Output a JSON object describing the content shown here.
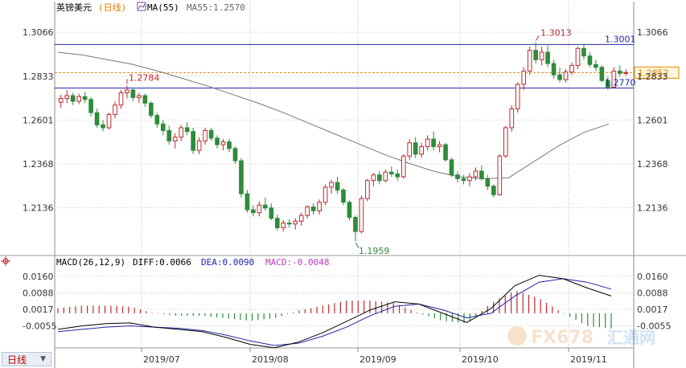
{
  "header": {
    "symbol": "英镑美元",
    "period": "(日线)",
    "ma_legend": "MA(55)",
    "ma_value": "MA55:1.2570"
  },
  "macd_header": {
    "name": "MACD(26,12,9)",
    "diff": "DIFF:0.0066",
    "dea": "DEA:0.0090",
    "macd": "MACD:-0.0048"
  },
  "period_tab": {
    "label": "日线",
    "arrow": "▼"
  },
  "watermark": {
    "brand": "FX678",
    "sub": "汇通网"
  },
  "colors": {
    "up": "#c0272d",
    "down": "#2e8b3a",
    "ma": "#777777",
    "hline": "#1f24a8",
    "price": "#e58a00",
    "diff": "#000000",
    "dea": "#1f24a8"
  },
  "chart_data": [
    {
      "type": "candlestick",
      "title": "英镑美元 (日线)",
      "x_ticks": [
        "2019/07",
        "2019/08",
        "2019/09",
        "2019/10",
        "2019/11"
      ],
      "y_ticks": [
        1.3066,
        1.2833,
        1.2601,
        1.2368,
        1.2136
      ],
      "ylim": [
        1.19,
        1.316
      ],
      "annotations": [
        {
          "label": "1.2784",
          "value": 1.2784
        },
        {
          "label": "1.3013",
          "value": 1.3013
        },
        {
          "label": "1.1959",
          "value": 1.1959
        },
        {
          "label": "1.3001",
          "value": 1.3001
        },
        {
          "label": "1.2770",
          "value": 1.277
        }
      ],
      "horizontal_lines": [
        1.3001,
        1.277
      ],
      "current_price": {
        "label": "1.2852",
        "value": 1.2852
      },
      "series": [
        {
          "name": "MA(55)",
          "values": [
            1.296,
            1.2945,
            1.292,
            1.2895,
            1.286,
            1.282,
            1.278,
            1.2735,
            1.269,
            1.264,
            1.2585,
            1.253,
            1.2475,
            1.242,
            1.2372,
            1.233,
            1.23,
            1.229,
            1.2295,
            1.238,
            1.2465,
            1.2535,
            1.258
          ]
        }
      ],
      "candles": [
        {
          "o": 1.2695,
          "h": 1.2735,
          "l": 1.2665,
          "c": 1.2715
        },
        {
          "o": 1.2715,
          "h": 1.276,
          "l": 1.269,
          "c": 1.273
        },
        {
          "o": 1.273,
          "h": 1.2745,
          "l": 1.268,
          "c": 1.27
        },
        {
          "o": 1.27,
          "h": 1.274,
          "l": 1.2685,
          "c": 1.2725
        },
        {
          "o": 1.2725,
          "h": 1.275,
          "l": 1.269,
          "c": 1.271
        },
        {
          "o": 1.271,
          "h": 1.272,
          "l": 1.262,
          "c": 1.264
        },
        {
          "o": 1.264,
          "h": 1.266,
          "l": 1.256,
          "c": 1.2575
        },
        {
          "o": 1.2575,
          "h": 1.26,
          "l": 1.254,
          "c": 1.256
        },
        {
          "o": 1.256,
          "h": 1.264,
          "l": 1.255,
          "c": 1.263
        },
        {
          "o": 1.263,
          "h": 1.27,
          "l": 1.261,
          "c": 1.268
        },
        {
          "o": 1.268,
          "h": 1.276,
          "l": 1.266,
          "c": 1.2745
        },
        {
          "o": 1.2745,
          "h": 1.2784,
          "l": 1.2715,
          "c": 1.276
        },
        {
          "o": 1.276,
          "h": 1.277,
          "l": 1.27,
          "c": 1.272
        },
        {
          "o": 1.272,
          "h": 1.2745,
          "l": 1.269,
          "c": 1.273
        },
        {
          "o": 1.273,
          "h": 1.274,
          "l": 1.267,
          "c": 1.269
        },
        {
          "o": 1.269,
          "h": 1.27,
          "l": 1.261,
          "c": 1.2625
        },
        {
          "o": 1.2625,
          "h": 1.264,
          "l": 1.256,
          "c": 1.258
        },
        {
          "o": 1.258,
          "h": 1.26,
          "l": 1.252,
          "c": 1.2545
        },
        {
          "o": 1.2545,
          "h": 1.257,
          "l": 1.247,
          "c": 1.249
        },
        {
          "o": 1.249,
          "h": 1.253,
          "l": 1.245,
          "c": 1.251
        },
        {
          "o": 1.251,
          "h": 1.2575,
          "l": 1.249,
          "c": 1.256
        },
        {
          "o": 1.256,
          "h": 1.259,
          "l": 1.252,
          "c": 1.254
        },
        {
          "o": 1.254,
          "h": 1.256,
          "l": 1.242,
          "c": 1.244
        },
        {
          "o": 1.244,
          "h": 1.251,
          "l": 1.242,
          "c": 1.249
        },
        {
          "o": 1.249,
          "h": 1.256,
          "l": 1.247,
          "c": 1.2545
        },
        {
          "o": 1.2545,
          "h": 1.256,
          "l": 1.249,
          "c": 1.2505
        },
        {
          "o": 1.2505,
          "h": 1.252,
          "l": 1.245,
          "c": 1.247
        },
        {
          "o": 1.247,
          "h": 1.25,
          "l": 1.244,
          "c": 1.2485
        },
        {
          "o": 1.2485,
          "h": 1.25,
          "l": 1.243,
          "c": 1.245
        },
        {
          "o": 1.245,
          "h": 1.246,
          "l": 1.237,
          "c": 1.2385
        },
        {
          "o": 1.2385,
          "h": 1.24,
          "l": 1.219,
          "c": 1.221
        },
        {
          "o": 1.221,
          "h": 1.223,
          "l": 1.211,
          "c": 1.2125
        },
        {
          "o": 1.2125,
          "h": 1.215,
          "l": 1.209,
          "c": 1.211
        },
        {
          "o": 1.211,
          "h": 1.217,
          "l": 1.209,
          "c": 1.215
        },
        {
          "o": 1.215,
          "h": 1.219,
          "l": 1.212,
          "c": 1.2135
        },
        {
          "o": 1.2135,
          "h": 1.216,
          "l": 1.207,
          "c": 1.208
        },
        {
          "o": 1.208,
          "h": 1.21,
          "l": 1.2015,
          "c": 1.203
        },
        {
          "o": 1.203,
          "h": 1.207,
          "l": 1.201,
          "c": 1.2055
        },
        {
          "o": 1.2055,
          "h": 1.2075,
          "l": 1.203,
          "c": 1.205
        },
        {
          "o": 1.205,
          "h": 1.208,
          "l": 1.202,
          "c": 1.2065
        },
        {
          "o": 1.2065,
          "h": 1.211,
          "l": 1.204,
          "c": 1.2095
        },
        {
          "o": 1.2095,
          "h": 1.215,
          "l": 1.208,
          "c": 1.214
        },
        {
          "o": 1.214,
          "h": 1.216,
          "l": 1.21,
          "c": 1.212
        },
        {
          "o": 1.212,
          "h": 1.218,
          "l": 1.21,
          "c": 1.2165
        },
        {
          "o": 1.2165,
          "h": 1.226,
          "l": 1.215,
          "c": 1.2245
        },
        {
          "o": 1.2245,
          "h": 1.2285,
          "l": 1.221,
          "c": 1.227
        },
        {
          "o": 1.227,
          "h": 1.23,
          "l": 1.221,
          "c": 1.223
        },
        {
          "o": 1.223,
          "h": 1.224,
          "l": 1.215,
          "c": 1.2165
        },
        {
          "o": 1.2165,
          "h": 1.2175,
          "l": 1.207,
          "c": 1.2085
        },
        {
          "o": 1.2085,
          "h": 1.2095,
          "l": 1.1959,
          "c": 1.201
        },
        {
          "o": 1.201,
          "h": 1.22,
          "l": 1.2,
          "c": 1.2185
        },
        {
          "o": 1.2185,
          "h": 1.229,
          "l": 1.217,
          "c": 1.228
        },
        {
          "o": 1.228,
          "h": 1.232,
          "l": 1.225,
          "c": 1.231
        },
        {
          "o": 1.231,
          "h": 1.233,
          "l": 1.226,
          "c": 1.228
        },
        {
          "o": 1.228,
          "h": 1.234,
          "l": 1.227,
          "c": 1.2325
        },
        {
          "o": 1.2325,
          "h": 1.2355,
          "l": 1.23,
          "c": 1.2315
        },
        {
          "o": 1.2315,
          "h": 1.234,
          "l": 1.228,
          "c": 1.23
        },
        {
          "o": 1.23,
          "h": 1.242,
          "l": 1.229,
          "c": 1.241
        },
        {
          "o": 1.241,
          "h": 1.25,
          "l": 1.239,
          "c": 1.248
        },
        {
          "o": 1.248,
          "h": 1.251,
          "l": 1.24,
          "c": 1.242
        },
        {
          "o": 1.242,
          "h": 1.248,
          "l": 1.24,
          "c": 1.246
        },
        {
          "o": 1.246,
          "h": 1.252,
          "l": 1.244,
          "c": 1.25
        },
        {
          "o": 1.25,
          "h": 1.254,
          "l": 1.244,
          "c": 1.246
        },
        {
          "o": 1.246,
          "h": 1.249,
          "l": 1.243,
          "c": 1.247
        },
        {
          "o": 1.247,
          "h": 1.248,
          "l": 1.238,
          "c": 1.239
        },
        {
          "o": 1.239,
          "h": 1.24,
          "l": 1.23,
          "c": 1.231
        },
        {
          "o": 1.231,
          "h": 1.233,
          "l": 1.227,
          "c": 1.229
        },
        {
          "o": 1.229,
          "h": 1.231,
          "l": 1.226,
          "c": 1.228
        },
        {
          "o": 1.228,
          "h": 1.232,
          "l": 1.225,
          "c": 1.23
        },
        {
          "o": 1.23,
          "h": 1.235,
          "l": 1.228,
          "c": 1.233
        },
        {
          "o": 1.233,
          "h": 1.236,
          "l": 1.228,
          "c": 1.229
        },
        {
          "o": 1.229,
          "h": 1.231,
          "l": 1.223,
          "c": 1.225
        },
        {
          "o": 1.225,
          "h": 1.226,
          "l": 1.219,
          "c": 1.2205
        },
        {
          "o": 1.2205,
          "h": 1.242,
          "l": 1.22,
          "c": 1.241
        },
        {
          "o": 1.241,
          "h": 1.257,
          "l": 1.24,
          "c": 1.256
        },
        {
          "o": 1.256,
          "h": 1.268,
          "l": 1.254,
          "c": 1.266
        },
        {
          "o": 1.266,
          "h": 1.28,
          "l": 1.264,
          "c": 1.279
        },
        {
          "o": 1.279,
          "h": 1.288,
          "l": 1.276,
          "c": 1.286
        },
        {
          "o": 1.286,
          "h": 1.299,
          "l": 1.284,
          "c": 1.297
        },
        {
          "o": 1.297,
          "h": 1.3013,
          "l": 1.29,
          "c": 1.292
        },
        {
          "o": 1.292,
          "h": 1.299,
          "l": 1.289,
          "c": 1.296
        },
        {
          "o": 1.296,
          "h": 1.2995,
          "l": 1.288,
          "c": 1.29
        },
        {
          "o": 1.29,
          "h": 1.292,
          "l": 1.282,
          "c": 1.284
        },
        {
          "o": 1.284,
          "h": 1.288,
          "l": 1.28,
          "c": 1.2815
        },
        {
          "o": 1.2815,
          "h": 1.287,
          "l": 1.28,
          "c": 1.2855
        },
        {
          "o": 1.2855,
          "h": 1.2905,
          "l": 1.284,
          "c": 1.289
        },
        {
          "o": 1.289,
          "h": 1.299,
          "l": 1.287,
          "c": 1.298
        },
        {
          "o": 1.298,
          "h": 1.3005,
          "l": 1.292,
          "c": 1.294
        },
        {
          "o": 1.294,
          "h": 1.296,
          "l": 1.288,
          "c": 1.2895
        },
        {
          "o": 1.2895,
          "h": 1.292,
          "l": 1.286,
          "c": 1.288
        },
        {
          "o": 1.288,
          "h": 1.289,
          "l": 1.28,
          "c": 1.281
        },
        {
          "o": 1.281,
          "h": 1.283,
          "l": 1.276,
          "c": 1.2775
        },
        {
          "o": 1.2775,
          "h": 1.288,
          "l": 1.277,
          "c": 1.286
        },
        {
          "o": 1.286,
          "h": 1.289,
          "l": 1.283,
          "c": 1.2848
        },
        {
          "o": 1.2848,
          "h": 1.287,
          "l": 1.2835,
          "c": 1.2852
        }
      ]
    },
    {
      "type": "macd",
      "title": "MACD(26,12,9)",
      "y_ticks": [
        0.016,
        0.0088,
        0.0017,
        -0.0055
      ],
      "ylim": [
        -0.014,
        0.0195
      ],
      "series": [
        {
          "name": "DIFF",
          "values": [
            -0.007,
            -0.0055,
            -0.0045,
            -0.0042,
            -0.006,
            -0.007,
            -0.008,
            -0.0105,
            -0.0135,
            -0.015,
            -0.0125,
            -0.0085,
            -0.0035,
            0.0015,
            0.005,
            0.004,
            0.0,
            -0.004,
            0.002,
            0.012,
            0.0165,
            0.015,
            0.011,
            0.0075
          ]
        },
        {
          "name": "DEA",
          "values": [
            -0.008,
            -0.007,
            -0.006,
            -0.0055,
            -0.006,
            -0.0065,
            -0.0075,
            -0.0095,
            -0.012,
            -0.014,
            -0.013,
            -0.01,
            -0.006,
            -0.001,
            0.003,
            0.004,
            0.0015,
            -0.002,
            0.0,
            0.0075,
            0.0135,
            0.015,
            0.0135,
            0.0105
          ]
        }
      ]
    }
  ]
}
